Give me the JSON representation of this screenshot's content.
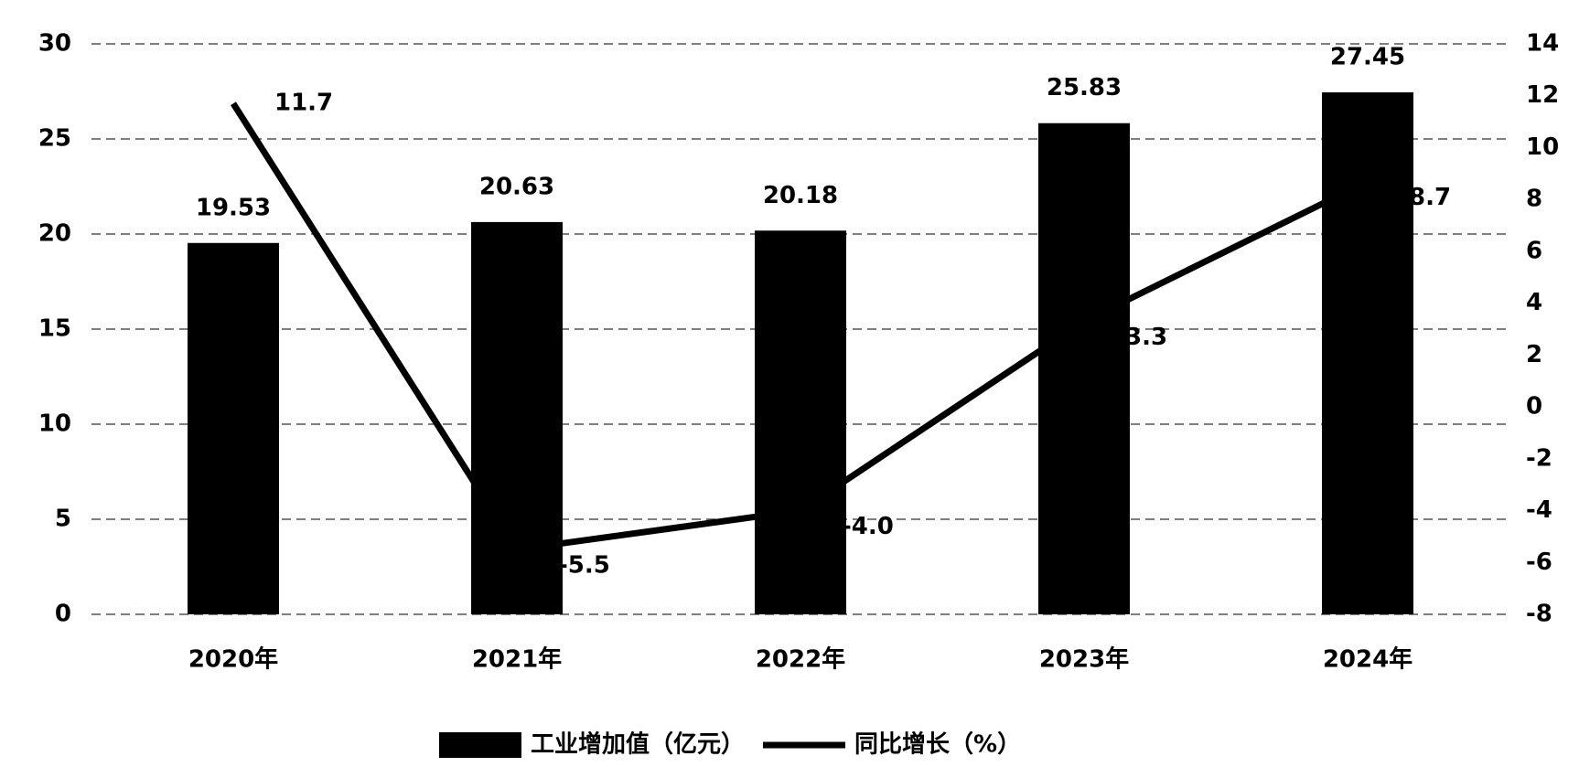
{
  "chart_data": {
    "type": "bar",
    "categories": [
      "2020年",
      "2021年",
      "2022年",
      "2023年",
      "2024年"
    ],
    "series": [
      {
        "name": "工业增加值（亿元）",
        "type": "bar",
        "color": "#000000",
        "values": [
          19.53,
          20.63,
          20.18,
          25.83,
          27.45
        ]
      },
      {
        "name": "同比增长（%）",
        "type": "line",
        "axis": "y2",
        "color": "#000000",
        "values": [
          11.7,
          -5.5,
          -4.0,
          3.3,
          8.7
        ],
        "value_labels": [
          "11.7",
          "-5.5",
          "-4.0",
          "3.3",
          "8.7"
        ]
      }
    ],
    "ylim": [
      0,
      30
    ],
    "yticks": [
      0,
      5,
      10,
      15,
      20,
      25,
      30
    ],
    "y2lim": [
      -8,
      14
    ],
    "y2ticks": [
      -8,
      -6,
      -4,
      -2,
      0,
      2,
      4,
      6,
      8,
      10,
      12,
      14
    ],
    "grid": true,
    "legend": "bottom"
  }
}
